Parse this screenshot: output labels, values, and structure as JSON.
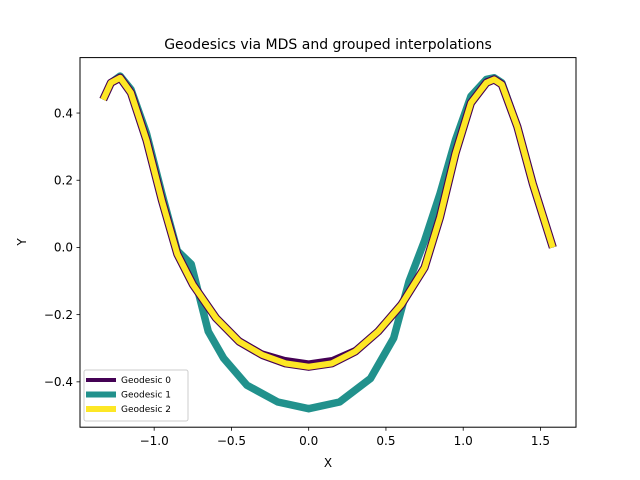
{
  "chart_data": {
    "type": "line",
    "title": "Geodesics via MDS and grouped interpolations",
    "xlabel": "X",
    "ylabel": "Y",
    "xlim": [
      -1.48,
      1.73
    ],
    "ylim": [
      -0.535,
      0.565
    ],
    "xticks": [
      -1.0,
      -0.5,
      0.0,
      0.5,
      1.0,
      1.5
    ],
    "xtick_labels": [
      "−1.0",
      "−0.5",
      "0.0",
      "0.5",
      "1.0",
      "1.5"
    ],
    "yticks": [
      -0.4,
      -0.2,
      0.0,
      0.2,
      0.4
    ],
    "ytick_labels": [
      "−0.4",
      "−0.2",
      "0.0",
      "0.2",
      "0.4"
    ],
    "grid": false,
    "legend_position": "lower-left",
    "series": [
      {
        "name": "Geodesic 0",
        "color": "#440154",
        "x": [
          -1.33,
          -1.28,
          -1.22,
          -1.15,
          -1.05,
          -0.95,
          -0.85,
          -0.75,
          -0.6,
          -0.45,
          -0.3,
          -0.15,
          0.0,
          0.15,
          0.3,
          0.45,
          0.6,
          0.75,
          0.85,
          0.95,
          1.05,
          1.15,
          1.2,
          1.25,
          1.35,
          1.45,
          1.58
        ],
        "y": [
          0.44,
          0.49,
          0.51,
          0.47,
          0.33,
          0.15,
          -0.01,
          -0.1,
          -0.2,
          -0.27,
          -0.31,
          -0.33,
          -0.34,
          -0.33,
          -0.3,
          -0.24,
          -0.16,
          -0.05,
          0.1,
          0.29,
          0.44,
          0.5,
          0.505,
          0.49,
          0.36,
          0.19,
          0.0
        ]
      },
      {
        "name": "Geodesic 1",
        "color": "#21918c",
        "x": [
          -1.33,
          -1.28,
          -1.22,
          -1.15,
          -1.05,
          -0.95,
          -0.85,
          -0.76,
          -0.65,
          -0.55,
          -0.4,
          -0.2,
          0.0,
          0.2,
          0.4,
          0.55,
          0.65,
          0.75,
          0.85,
          0.95,
          1.05,
          1.15,
          1.2,
          1.25,
          1.35,
          1.45,
          1.58
        ],
        "y": [
          0.44,
          0.49,
          0.51,
          0.47,
          0.34,
          0.16,
          -0.01,
          -0.05,
          -0.25,
          -0.33,
          -0.41,
          -0.46,
          -0.48,
          -0.46,
          -0.39,
          -0.27,
          -0.1,
          0.02,
          0.16,
          0.32,
          0.45,
          0.5,
          0.505,
          0.49,
          0.36,
          0.19,
          0.0
        ]
      },
      {
        "name": "Geodesic 2",
        "color": "#fde725",
        "x": [
          -1.33,
          -1.28,
          -1.22,
          -1.15,
          -1.05,
          -0.95,
          -0.85,
          -0.75,
          -0.6,
          -0.45,
          -0.3,
          -0.15,
          0.0,
          0.15,
          0.3,
          0.45,
          0.6,
          0.75,
          0.85,
          0.95,
          1.05,
          1.15,
          1.2,
          1.25,
          1.35,
          1.45,
          1.58
        ],
        "y": [
          0.44,
          0.49,
          0.505,
          0.46,
          0.32,
          0.14,
          -0.02,
          -0.11,
          -0.21,
          -0.28,
          -0.32,
          -0.345,
          -0.355,
          -0.345,
          -0.31,
          -0.25,
          -0.17,
          -0.06,
          0.09,
          0.28,
          0.43,
          0.49,
          0.5,
          0.485,
          0.36,
          0.19,
          0.0
        ]
      }
    ]
  }
}
